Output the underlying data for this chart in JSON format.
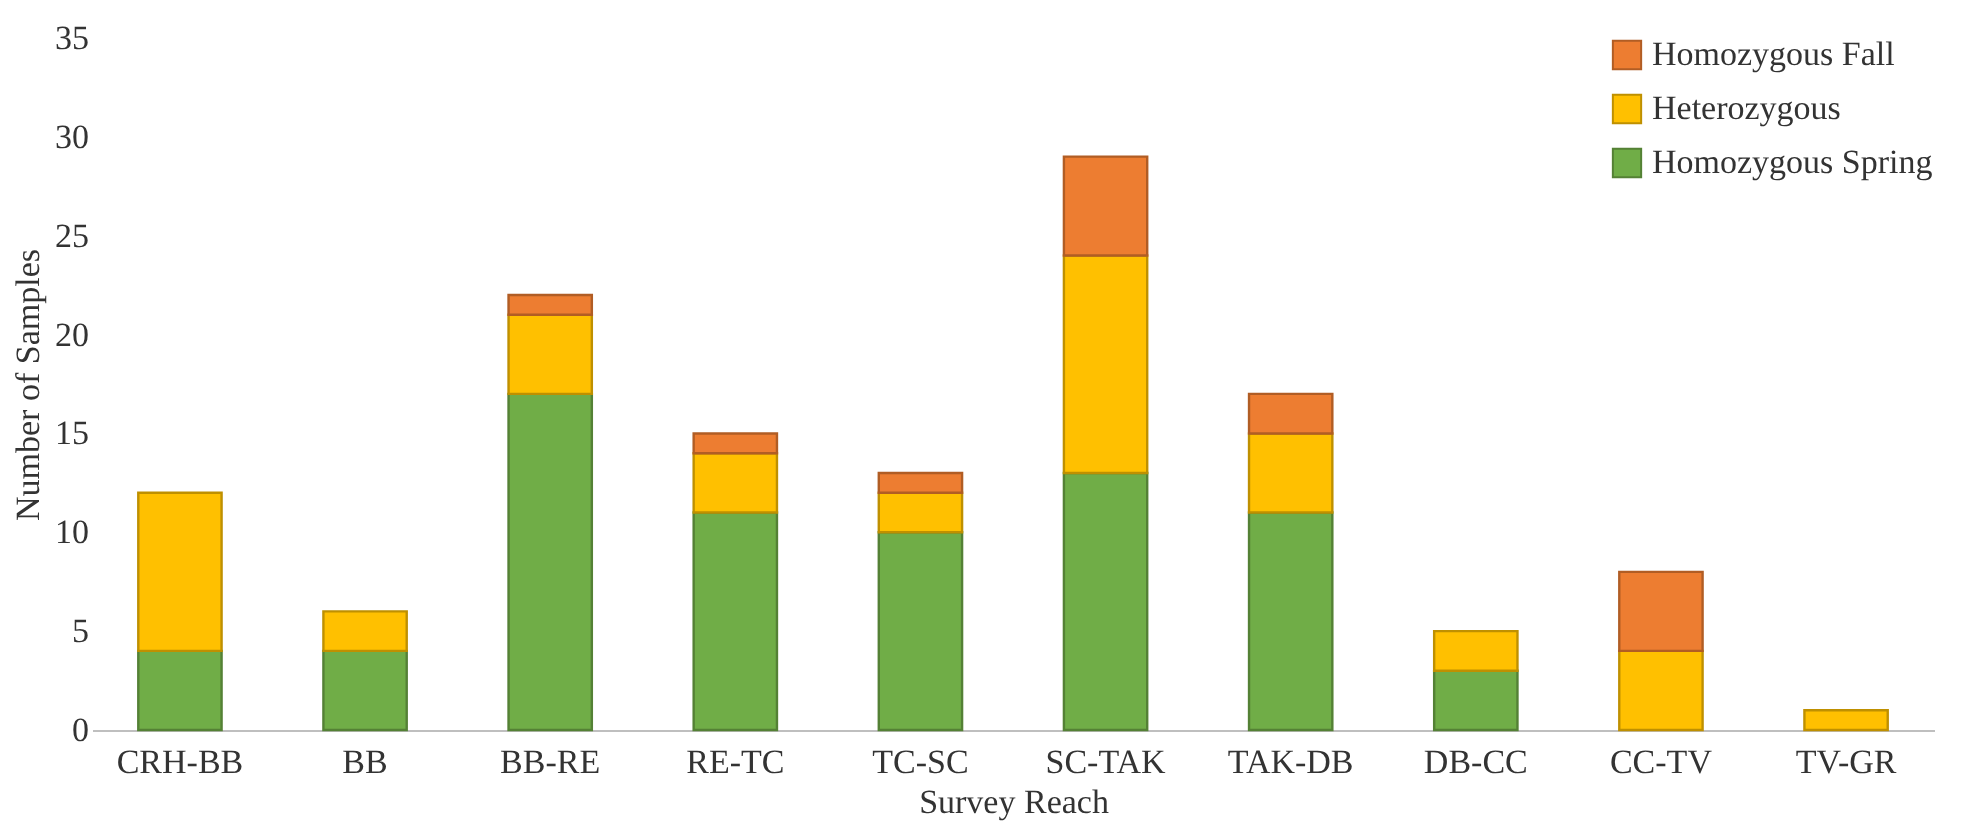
{
  "chart_data": {
    "type": "bar",
    "stacked": true,
    "xlabel": "Survey Reach",
    "ylabel": "Number of Samples",
    "categories": [
      "CRH-BB",
      "BB",
      "BB-RE",
      "RE-TC",
      "TC-SC",
      "SC-TAK",
      "TAK-DB",
      "DB-CC",
      "CC-TV",
      "TV-GR"
    ],
    "series": [
      {
        "name": "Homozygous Spring",
        "color": "#70ad47",
        "values": [
          4,
          4,
          17,
          11,
          10,
          13,
          11,
          3,
          0,
          0
        ]
      },
      {
        "name": "Heterozygous",
        "color": "#ffc000",
        "values": [
          8,
          2,
          4,
          3,
          2,
          11,
          4,
          2,
          4,
          1
        ]
      },
      {
        "name": "Homozygous Fall",
        "color": "#ed7d31",
        "values": [
          0,
          0,
          1,
          1,
          1,
          5,
          2,
          0,
          4,
          0
        ]
      }
    ],
    "ylim": [
      0,
      35
    ],
    "yticks": [
      0,
      5,
      10,
      15,
      20,
      25,
      30,
      35
    ],
    "grid": false,
    "legend": "top right"
  }
}
